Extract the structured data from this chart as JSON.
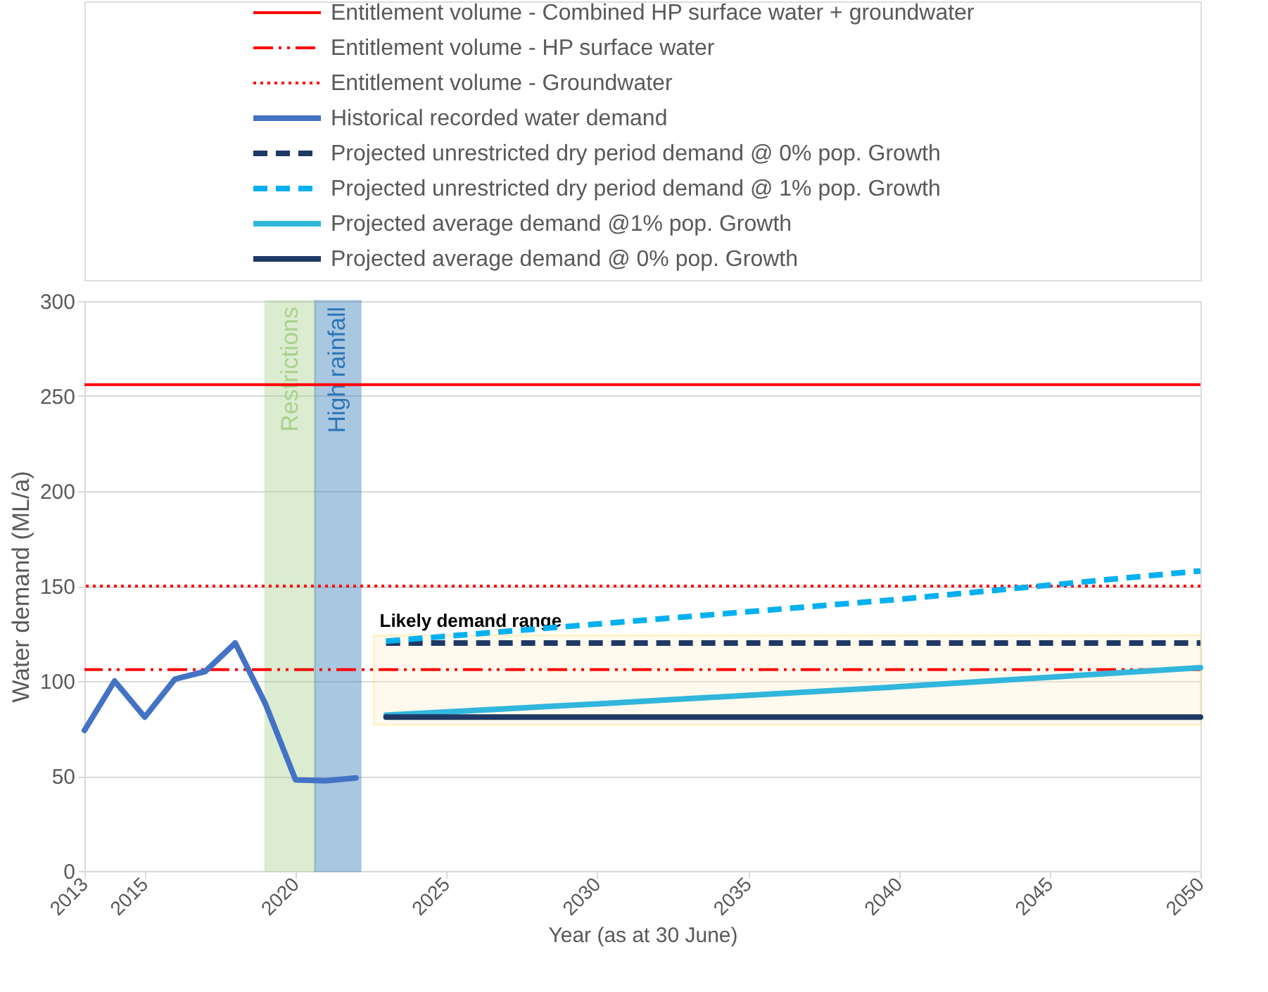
{
  "chart_data": {
    "type": "line",
    "xlabel": "Year (as at 30 June)",
    "ylabel": "Water demand (ML/a)",
    "xlim": [
      2013,
      2050
    ],
    "xticks": [
      2013,
      2015,
      2020,
      2025,
      2030,
      2035,
      2040,
      2045,
      2050
    ],
    "ylim": [
      0,
      300
    ],
    "yticks": [
      0,
      50,
      100,
      150,
      200,
      250,
      300
    ],
    "grid": "y",
    "legend": "top",
    "marker": "none",
    "ref_lines": [
      {
        "axis": "y",
        "value": 256,
        "label": "Entitlement volume - Combined HP surface water + groundwater",
        "color": "#ff0000",
        "line_style": "solid"
      },
      {
        "axis": "y",
        "value": 106,
        "label": "Entitlement volume - HP surface water",
        "color": "#ff0000",
        "line_style": "dashdot"
      },
      {
        "axis": "y",
        "value": 150,
        "label": "Entitlement volume - Groundwater",
        "color": "#ff0000",
        "line_style": "dotted"
      }
    ],
    "bands": [
      {
        "axis": "x",
        "from": 2019,
        "to": 2020.65,
        "label": "Restrictions",
        "color": "#a9d18e"
      },
      {
        "axis": "x",
        "from": 2020.65,
        "to": 2022.15,
        "label": "High rainfall",
        "color": "#2e75b6"
      },
      {
        "axis": "y",
        "from": 77,
        "to": 124,
        "label": "Likely demand range",
        "color": "#fff2cc"
      }
    ],
    "series": [
      {
        "name": "Historical recorded water demand",
        "color": "#4472c4",
        "line_style": "solid",
        "x": [
          2013,
          2014,
          2015,
          2016,
          2017,
          2018,
          2019,
          2020,
          2021,
          2022
        ],
        "values": [
          74,
          100,
          81,
          101,
          105,
          120,
          88,
          48,
          47.5,
          49
        ]
      },
      {
        "name": "Projected unrestricted dry period demand @ 0% pop. Growth",
        "color": "#203864",
        "line_style": "dashed",
        "x": [
          2023,
          2050
        ],
        "values": [
          120,
          120
        ]
      },
      {
        "name": "Projected unrestricted dry period demand @ 1% pop. Growth",
        "color": "#00b0f0",
        "line_style": "dashed",
        "x": [
          2023,
          2030,
          2040,
          2050
        ],
        "values": [
          121,
          130,
          143,
          158
        ]
      },
      {
        "name": "Projected average demand @1% pop. Growth",
        "color": "#31b6dc",
        "line_style": "solid",
        "x": [
          2023,
          2030,
          2040,
          2050
        ],
        "values": [
          82,
          88,
          97,
          107
        ]
      },
      {
        "name": "Projected average demand @ 0% pop. Growth",
        "color": "#1f3864",
        "line_style": "solid",
        "x": [
          2023,
          2050
        ],
        "values": [
          81,
          81
        ]
      }
    ]
  }
}
